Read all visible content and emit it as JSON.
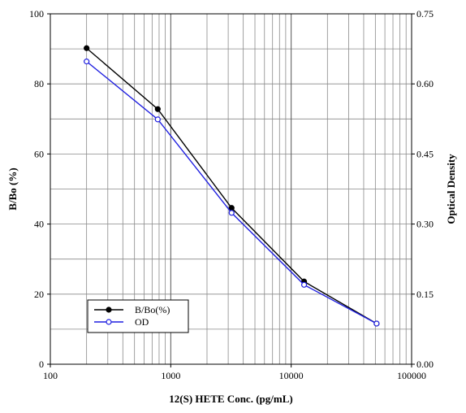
{
  "chart_data": {
    "type": "line",
    "xlabel": "12(S) HETE Conc. (pg/mL)",
    "ylabel": "B/Bo (%)",
    "y2label": "Optical Density",
    "xscale": "log",
    "xlim": [
      100,
      100000
    ],
    "ylim": [
      0,
      100
    ],
    "y2lim": [
      0,
      0.75
    ],
    "xticks": [
      100,
      1000,
      10000,
      100000
    ],
    "xtick_labels": [
      "100",
      "1000",
      "10000",
      "100000"
    ],
    "yticks": [
      0,
      20,
      40,
      60,
      80,
      100
    ],
    "ytick_labels": [
      "0",
      "20",
      "40",
      "60",
      "80",
      "100"
    ],
    "y2ticks": [
      0,
      0.15,
      0.3,
      0.45,
      0.6,
      0.75
    ],
    "y2tick_labels": [
      "0.00",
      "0.15",
      "0.30",
      "0.45",
      "0.60",
      "0.75"
    ],
    "grid": true,
    "legend_position": "bottom-left",
    "series": [
      {
        "name": "B/Bo(%)",
        "axis": "left",
        "color": "#000000",
        "marker": "filled-circle",
        "x": [
          200,
          780,
          3200,
          12800,
          51200
        ],
        "y": [
          90.2,
          72.8,
          44.6,
          23.6,
          11.6
        ]
      },
      {
        "name": "OD",
        "axis": "right",
        "color": "#1f1fe0",
        "marker": "open-circle",
        "x": [
          200,
          780,
          3200,
          12800,
          51200
        ],
        "y": [
          0.648,
          0.524,
          0.324,
          0.17,
          0.087
        ]
      }
    ]
  }
}
